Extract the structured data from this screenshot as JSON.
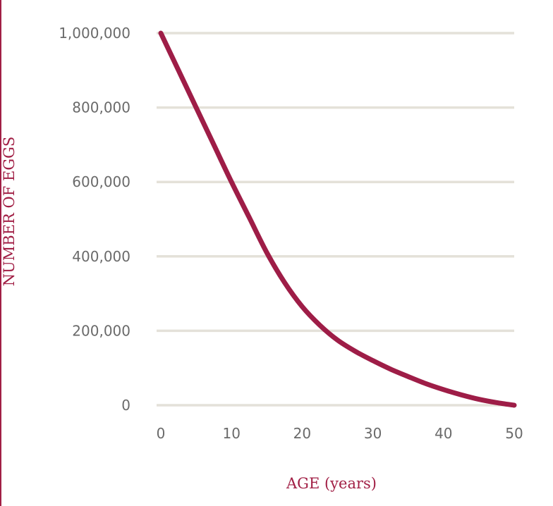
{
  "chart_data": {
    "type": "line",
    "title": "",
    "xlabel": "AGE (years)",
    "ylabel": "NUMBER OF EGGS",
    "xlim": [
      0,
      50
    ],
    "ylim": [
      0,
      1000000
    ],
    "xticks": [
      "0",
      "10",
      "20",
      "30",
      "40",
      "50"
    ],
    "yticks": [
      "0",
      "200,000",
      "400,000",
      "600,000",
      "800,000",
      "1,000,000"
    ],
    "grid": true,
    "series": [
      {
        "color": "#9e1d47",
        "x": [
          0,
          2.5,
          5,
          7.5,
          10,
          12.5,
          15,
          17.5,
          20,
          22.5,
          25,
          27.5,
          30,
          32.5,
          35,
          37.5,
          40,
          42.5,
          45,
          47.5,
          50
        ],
        "y": [
          1000000,
          900000,
          800000,
          700000,
          600000,
          505000,
          410000,
          330000,
          265000,
          215000,
          175000,
          145000,
          120000,
          97000,
          77000,
          58000,
          42000,
          28000,
          16000,
          7000,
          0
        ]
      }
    ]
  },
  "colors": {
    "accent": "#a11f45",
    "grid": "#e4e1d9",
    "tick_text": "#6a6a6a"
  }
}
